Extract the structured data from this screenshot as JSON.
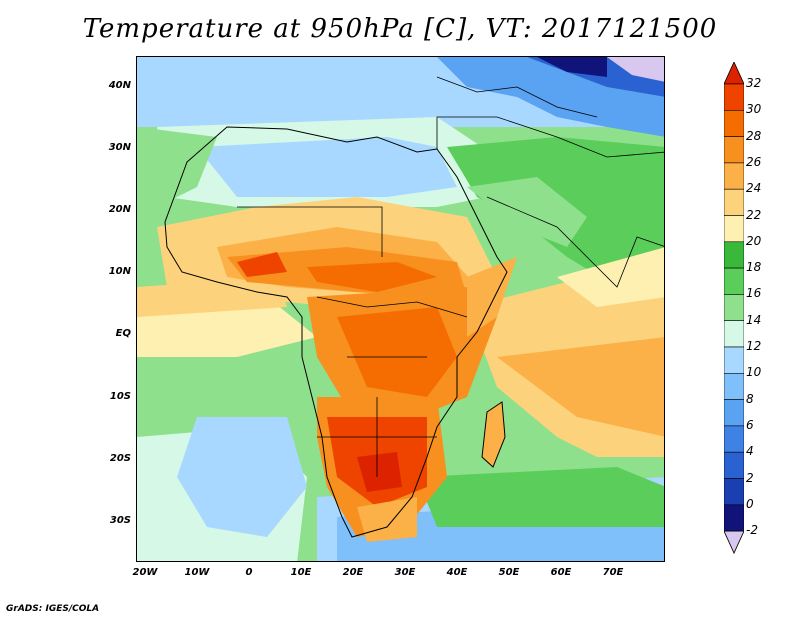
{
  "title": "Temperature at 950hPa [C], VT: 2017121500",
  "credit": "GrADS: IGES/COLA",
  "lat_labels": [
    "40N",
    "30N",
    "20N",
    "10N",
    "EQ",
    "10S",
    "20S",
    "30S"
  ],
  "lon_labels": [
    "20W",
    "10W",
    "0",
    "10E",
    "20E",
    "30E",
    "40E",
    "50E",
    "60E",
    "70E"
  ],
  "colorbar": {
    "labels": [
      "32",
      "30",
      "28",
      "26",
      "24",
      "22",
      "20",
      "18",
      "16",
      "14",
      "12",
      "10",
      "8",
      "6",
      "4",
      "2",
      "0",
      "-2"
    ],
    "colors": [
      "#dd2200",
      "#ee4400",
      "#f56d00",
      "#f89020",
      "#fbb048",
      "#fdd27c",
      "#fdf0b0",
      "#3ab83a",
      "#5acd5a",
      "#8fe08c",
      "#d6f8e6",
      "#a8d8ff",
      "#7fc0fb",
      "#5aa2f2",
      "#3e82e6",
      "#2a62d2",
      "#1a3fb0",
      "#10147a",
      "#d8c8f0"
    ]
  }
}
